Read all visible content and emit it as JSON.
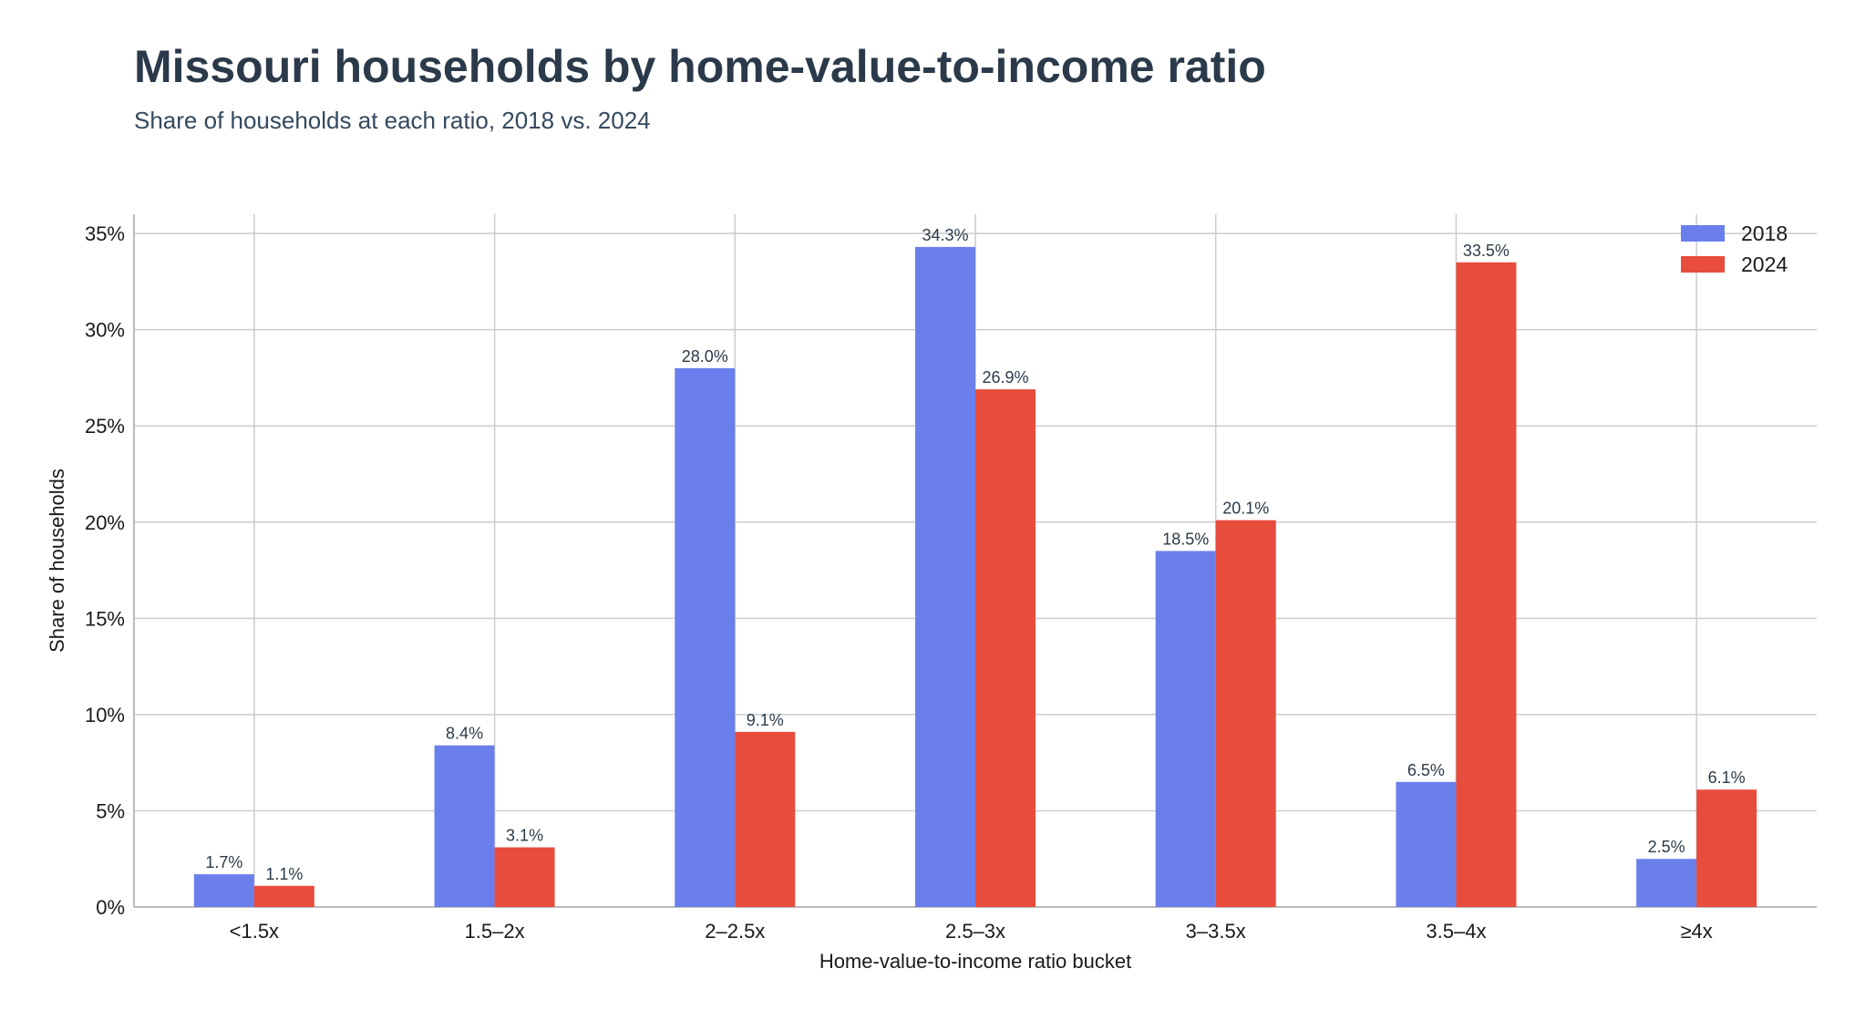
{
  "chart_data": {
    "type": "bar",
    "title": "Missouri households by home-value-to-income ratio",
    "subtitle": "Share of households at each ratio, 2018 vs. 2024",
    "xlabel": "Home-value-to-income ratio bucket",
    "ylabel": "Share of households",
    "categories": [
      "<1.5x",
      "1.5–2x",
      "2–2.5x",
      "2.5–3x",
      "3–3.5x",
      "3.5–4x",
      "≥4x"
    ],
    "series": [
      {
        "name": "2018",
        "color": "#6a7fec",
        "values": [
          1.7,
          8.4,
          28.0,
          34.3,
          18.5,
          6.5,
          2.5
        ],
        "labels": [
          "1.7%",
          "8.4%",
          "28.0%",
          "34.3%",
          "18.5%",
          "6.5%",
          "2.5%"
        ]
      },
      {
        "name": "2024",
        "color": "#e84c3d",
        "values": [
          1.1,
          3.1,
          9.1,
          26.9,
          20.1,
          33.5,
          6.1
        ],
        "labels": [
          "1.1%",
          "3.1%",
          "9.1%",
          "26.9%",
          "20.1%",
          "33.5%",
          "6.1%"
        ]
      }
    ],
    "ylim": [
      0,
      36
    ],
    "yticks": [
      0,
      5,
      10,
      15,
      20,
      25,
      30,
      35
    ],
    "ytick_labels": [
      "0%",
      "5%",
      "10%",
      "15%",
      "20%",
      "25%",
      "30%",
      "35%"
    ],
    "grid": true,
    "legend_position": "top-right"
  }
}
